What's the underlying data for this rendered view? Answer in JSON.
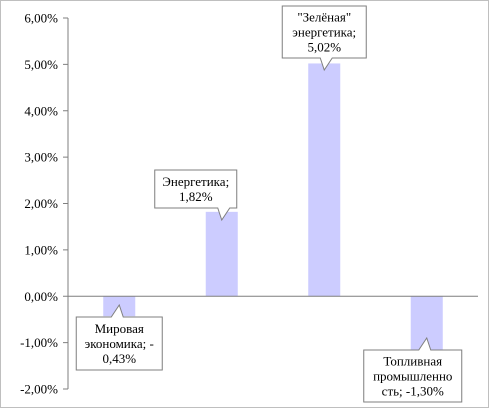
{
  "chart_data": {
    "type": "bar",
    "categories": [
      "Мировая экономика",
      "Энергетика",
      "\"Зелёная\" энергетика",
      "Топливная промышленность"
    ],
    "values": [
      -0.43,
      1.82,
      5.02,
      -1.3
    ],
    "ylim": [
      -2,
      6
    ],
    "yticks": [
      "6,00%",
      "5,00%",
      "4,00%",
      "3,00%",
      "2,00%",
      "1,00%",
      "0,00%",
      "-1,00%",
      "-2,00%"
    ],
    "data_labels": [
      [
        "Мировая",
        "экономика; -",
        "0,43%"
      ],
      [
        "Энергетика;",
        "1,82%"
      ],
      [
        "\"Зелёная\"",
        "энергетика;",
        "5,02%"
      ],
      [
        "Топливная",
        "промышленно",
        "сть; -1,30%"
      ]
    ],
    "bar_color": "#ccccff",
    "grid": false,
    "legend": "none"
  }
}
